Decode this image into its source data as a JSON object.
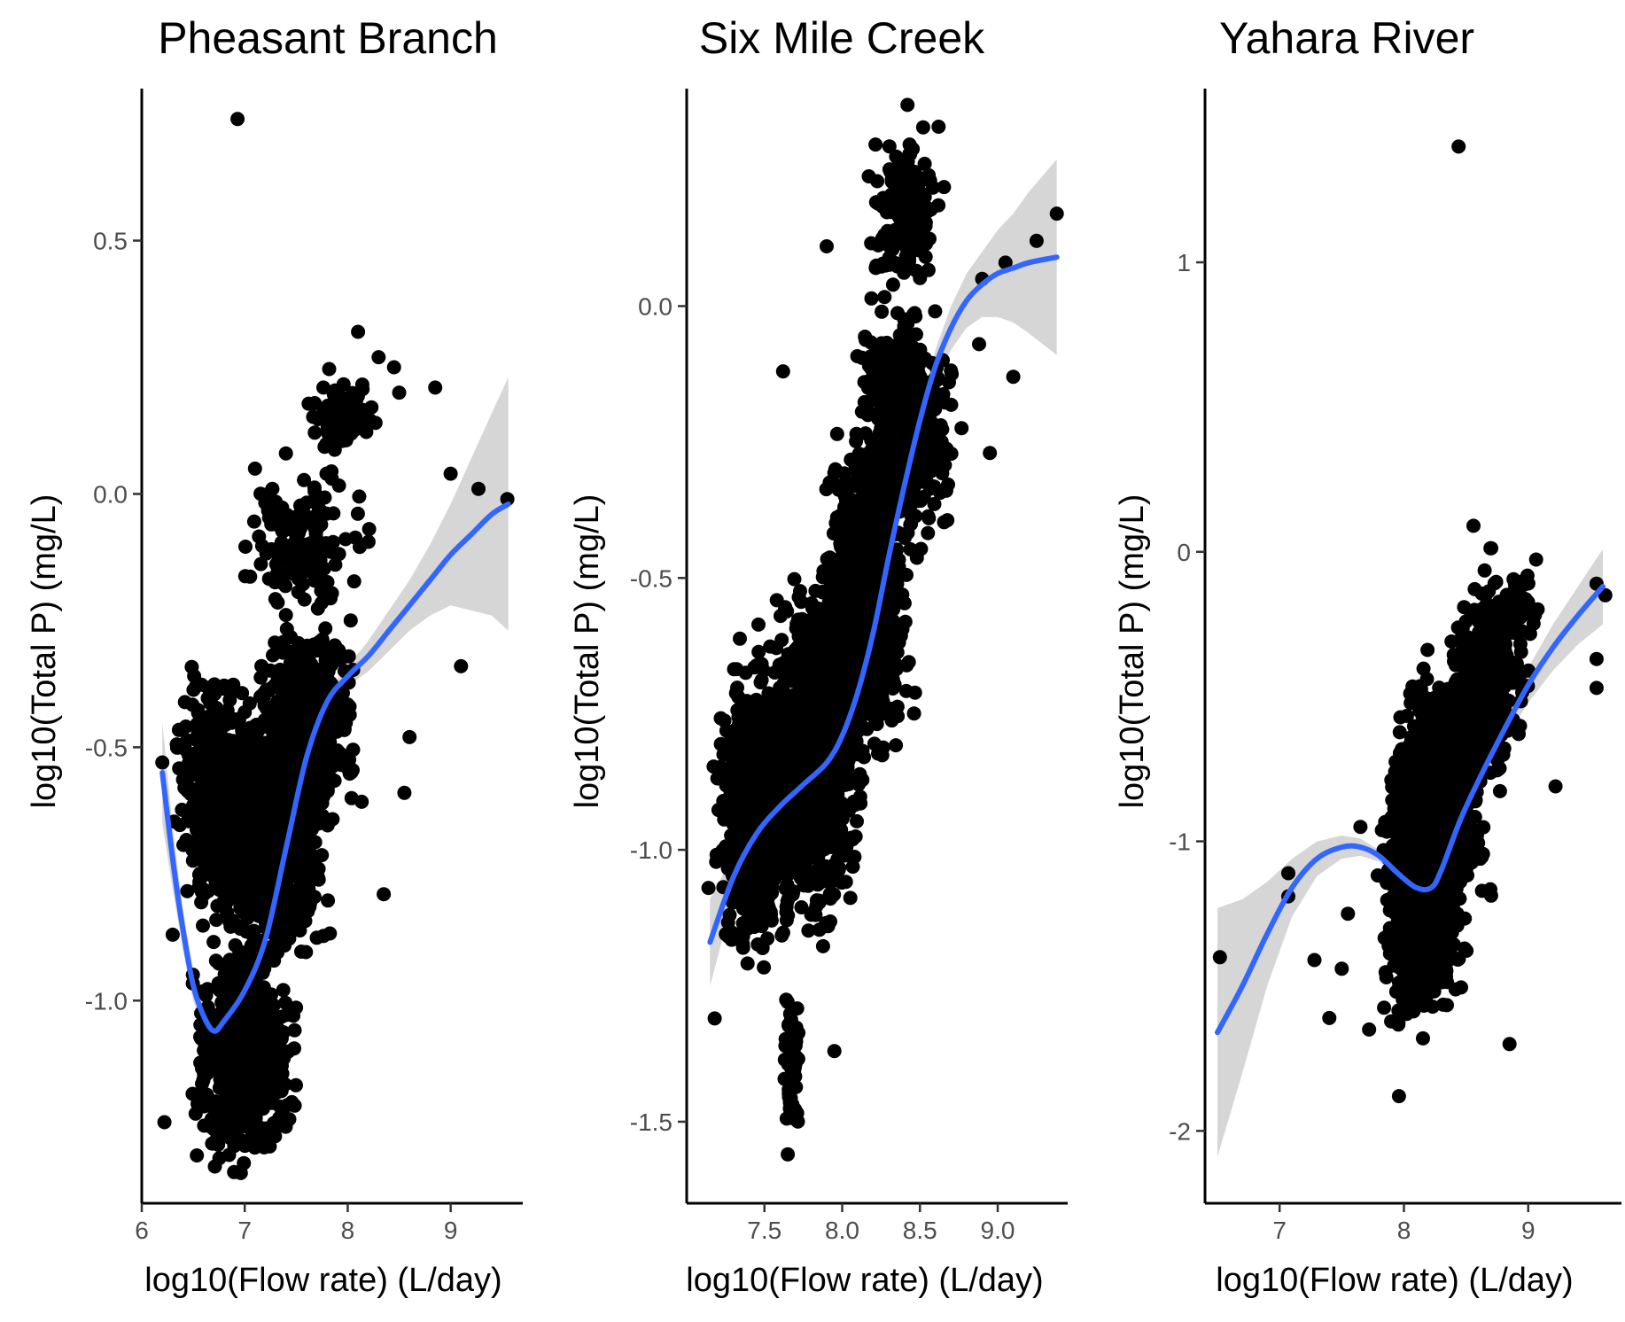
{
  "chart_data": [
    {
      "type": "scatter",
      "title": "Pheasant Branch",
      "xlabel": "log10(Flow rate) (L/day)",
      "ylabel": "log10(Total P) (mg/L)",
      "xlim": [
        6.0,
        9.7
      ],
      "ylim": [
        -1.4,
        0.8
      ],
      "xticks": [
        6,
        7,
        8,
        9
      ],
      "xtick_labels": [
        "6",
        "7",
        "8",
        "9"
      ],
      "yticks": [
        -1.0,
        -0.5,
        0.0,
        0.5
      ],
      "ytick_labels": [
        "-1.0",
        "-0.5",
        "0.0",
        "0.5"
      ],
      "grid": false,
      "point_color": "#000000",
      "smooth_color": "#3366ff",
      "band_color": "#bebebe",
      "cloud": [
        {
          "x": [
            6.25,
            7.2
          ],
          "y": [
            -0.9,
            -0.3
          ],
          "n": 500
        },
        {
          "x": [
            6.4,
            7.6
          ],
          "y": [
            -1.38,
            -0.85
          ],
          "n": 600
        },
        {
          "x": [
            6.7,
            7.9
          ],
          "y": [
            -1.0,
            -0.35
          ],
          "n": 700
        },
        {
          "x": [
            7.0,
            8.2
          ],
          "y": [
            -0.7,
            -0.2
          ],
          "n": 500
        },
        {
          "x": [
            6.9,
            8.3
          ],
          "y": [
            -0.3,
            0.1
          ],
          "n": 150
        },
        {
          "x": [
            7.5,
            8.4
          ],
          "y": [
            0.05,
            0.25
          ],
          "n": 80
        }
      ],
      "points": [
        {
          "x": 6.93,
          "y": 0.74
        },
        {
          "x": 8.1,
          "y": 0.32
        },
        {
          "x": 8.3,
          "y": 0.27
        },
        {
          "x": 8.45,
          "y": 0.25
        },
        {
          "x": 8.85,
          "y": 0.21
        },
        {
          "x": 8.5,
          "y": 0.2
        },
        {
          "x": 9.0,
          "y": 0.04
        },
        {
          "x": 9.27,
          "y": 0.01
        },
        {
          "x": 9.55,
          "y": -0.01
        },
        {
          "x": 9.1,
          "y": -0.34
        },
        {
          "x": 8.6,
          "y": -0.48
        },
        {
          "x": 8.55,
          "y": -0.59
        },
        {
          "x": 8.35,
          "y": -0.79
        },
        {
          "x": 6.22,
          "y": -1.24
        },
        {
          "x": 6.2,
          "y": -0.53
        },
        {
          "x": 6.3,
          "y": -0.87
        },
        {
          "x": 7.4,
          "y": 0.08
        },
        {
          "x": 7.1,
          "y": 0.05
        }
      ],
      "smooth": {
        "x": [
          6.2,
          6.3,
          6.4,
          6.5,
          6.6,
          6.7,
          6.8,
          7.0,
          7.2,
          7.4,
          7.6,
          7.8,
          8.0,
          8.2,
          8.4,
          8.6,
          8.8,
          9.0,
          9.2,
          9.4,
          9.56
        ],
        "y": [
          -0.55,
          -0.72,
          -0.86,
          -0.97,
          -1.03,
          -1.06,
          -1.04,
          -0.98,
          -0.88,
          -0.7,
          -0.52,
          -0.41,
          -0.36,
          -0.32,
          -0.27,
          -0.22,
          -0.17,
          -0.12,
          -0.08,
          -0.04,
          -0.02
        ],
        "band_halfwidth": [
          0.1,
          0.06,
          0.04,
          0.03,
          0.025,
          0.02,
          0.02,
          0.02,
          0.02,
          0.02,
          0.02,
          0.02,
          0.02,
          0.03,
          0.04,
          0.05,
          0.07,
          0.1,
          0.15,
          0.2,
          0.25
        ]
      }
    },
    {
      "type": "scatter",
      "title": "Six Mile Creek",
      "xlabel": "log10(Flow rate) (L/day)",
      "ylabel": "log10(Total P) (mg/L)",
      "xlim": [
        7.0,
        9.45
      ],
      "ylim": [
        -1.65,
        0.4
      ],
      "xticks": [
        7.5,
        8.0,
        8.5,
        9.0
      ],
      "xtick_labels": [
        "7.5",
        "8.0",
        "8.5",
        "9.0"
      ],
      "yticks": [
        -1.5,
        -1.0,
        -0.5,
        0.0
      ],
      "ytick_labels": [
        "-1.5",
        "-1.0",
        "-0.5",
        "0.0"
      ],
      "grid": false,
      "point_color": "#000000",
      "smooth_color": "#3366ff",
      "band_color": "#bebebe",
      "cloud": [
        {
          "x": [
            7.15,
            7.7
          ],
          "y": [
            -1.25,
            -0.6
          ],
          "n": 700
        },
        {
          "x": [
            7.4,
            8.2
          ],
          "y": [
            -1.2,
            -0.45
          ],
          "n": 1100
        },
        {
          "x": [
            7.8,
            8.5
          ],
          "y": [
            -0.9,
            -0.2
          ],
          "n": 800
        },
        {
          "x": [
            8.0,
            8.8
          ],
          "y": [
            -0.5,
            0.05
          ],
          "n": 500
        },
        {
          "x": [
            8.1,
            8.7
          ],
          "y": [
            0.0,
            0.35
          ],
          "n": 150
        },
        {
          "x": [
            7.6,
            7.75
          ],
          "y": [
            -1.55,
            -1.25
          ],
          "n": 60
        }
      ],
      "points": [
        {
          "x": 8.42,
          "y": 0.37
        },
        {
          "x": 8.62,
          "y": 0.33
        },
        {
          "x": 9.38,
          "y": 0.17
        },
        {
          "x": 9.25,
          "y": 0.12
        },
        {
          "x": 9.05,
          "y": 0.08
        },
        {
          "x": 8.9,
          "y": 0.05
        },
        {
          "x": 8.88,
          "y": -0.07
        },
        {
          "x": 9.1,
          "y": -0.13
        },
        {
          "x": 8.95,
          "y": -0.27
        },
        {
          "x": 7.62,
          "y": -0.12
        },
        {
          "x": 7.9,
          "y": 0.11
        },
        {
          "x": 7.14,
          "y": -1.07
        },
        {
          "x": 7.18,
          "y": -1.31
        },
        {
          "x": 7.95,
          "y": -1.37
        },
        {
          "x": 7.65,
          "y": -1.56
        }
      ],
      "smooth": {
        "x": [
          7.15,
          7.3,
          7.45,
          7.6,
          7.75,
          7.9,
          8.0,
          8.1,
          8.2,
          8.3,
          8.4,
          8.5,
          8.6,
          8.7,
          8.8,
          8.9,
          9.0,
          9.1,
          9.2,
          9.38
        ],
        "y": [
          -1.17,
          -1.05,
          -0.97,
          -0.92,
          -0.88,
          -0.84,
          -0.79,
          -0.71,
          -0.6,
          -0.46,
          -0.33,
          -0.21,
          -0.11,
          -0.04,
          0.01,
          0.04,
          0.06,
          0.07,
          0.08,
          0.09
        ],
        "band_halfwidth": [
          0.08,
          0.04,
          0.02,
          0.015,
          0.012,
          0.012,
          0.012,
          0.012,
          0.015,
          0.02,
          0.02,
          0.025,
          0.03,
          0.04,
          0.05,
          0.06,
          0.08,
          0.1,
          0.13,
          0.18
        ]
      }
    },
    {
      "type": "scatter",
      "title": "Yahara River",
      "xlabel": "log10(Flow rate) (L/day)",
      "ylabel": "log10(Total P) (mg/L)",
      "xlim": [
        6.4,
        9.75
      ],
      "ylim": [
        -2.25,
        1.6
      ],
      "xticks": [
        7,
        8,
        9
      ],
      "xtick_labels": [
        "7",
        "8",
        "9"
      ],
      "yticks": [
        -2,
        -1,
        0,
        1
      ],
      "ytick_labels": [
        "-2",
        "-1",
        "0",
        "1"
      ],
      "grid": false,
      "point_color": "#000000",
      "smooth_color": "#3366ff",
      "band_color": "#bebebe",
      "cloud": [
        {
          "x": [
            7.75,
            8.55
          ],
          "y": [
            -1.75,
            -0.5
          ],
          "n": 1000
        },
        {
          "x": [
            7.85,
            8.75
          ],
          "y": [
            -1.4,
            -0.25
          ],
          "n": 600
        },
        {
          "x": [
            8.3,
            9.05
          ],
          "y": [
            -0.9,
            -0.05
          ],
          "n": 300
        },
        {
          "x": [
            8.4,
            9.25
          ],
          "y": [
            -0.4,
            0.02
          ],
          "n": 80
        }
      ],
      "points": [
        {
          "x": 8.44,
          "y": 1.4
        },
        {
          "x": 8.56,
          "y": 0.09
        },
        {
          "x": 9.62,
          "y": -0.15
        },
        {
          "x": 9.55,
          "y": -0.11
        },
        {
          "x": 9.55,
          "y": -0.37
        },
        {
          "x": 9.55,
          "y": -0.47
        },
        {
          "x": 9.22,
          "y": -0.81
        },
        {
          "x": 6.52,
          "y": -1.4
        },
        {
          "x": 7.07,
          "y": -1.11
        },
        {
          "x": 7.07,
          "y": -1.19
        },
        {
          "x": 7.28,
          "y": -1.41
        },
        {
          "x": 7.4,
          "y": -1.61
        },
        {
          "x": 7.5,
          "y": -1.44
        },
        {
          "x": 7.72,
          "y": -1.65
        },
        {
          "x": 7.96,
          "y": -1.88
        },
        {
          "x": 8.85,
          "y": -1.7
        },
        {
          "x": 7.65,
          "y": -0.95
        },
        {
          "x": 7.55,
          "y": -1.25
        }
      ],
      "smooth": {
        "x": [
          6.5,
          6.7,
          6.9,
          7.1,
          7.3,
          7.5,
          7.65,
          7.8,
          7.95,
          8.1,
          8.22,
          8.3,
          8.45,
          8.6,
          8.8,
          9.0,
          9.2,
          9.4,
          9.6
        ],
        "y": [
          -1.66,
          -1.5,
          -1.32,
          -1.16,
          -1.06,
          -1.02,
          -1.02,
          -1.05,
          -1.11,
          -1.16,
          -1.16,
          -1.1,
          -0.93,
          -0.79,
          -0.62,
          -0.46,
          -0.33,
          -0.22,
          -0.12
        ],
        "band_halfwidth": [
          0.43,
          0.3,
          0.18,
          0.1,
          0.06,
          0.04,
          0.03,
          0.02,
          0.02,
          0.02,
          0.02,
          0.02,
          0.02,
          0.03,
          0.04,
          0.06,
          0.08,
          0.1,
          0.13
        ]
      }
    }
  ]
}
